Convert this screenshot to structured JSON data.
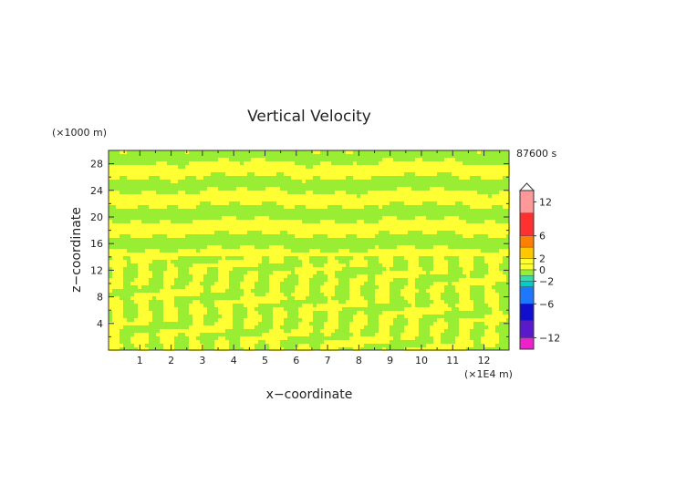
{
  "chart_data": {
    "type": "heatmap",
    "title": "Vertical Velocity",
    "xlabel": "x−coordinate",
    "ylabel": "z−coordinate",
    "x_unit": "(×1E4 m)",
    "y_unit": "(×1000 m)",
    "time_label": "87600 s",
    "xlim": [
      0,
      12.8
    ],
    "ylim": [
      0,
      30
    ],
    "x_ticks": [
      "1",
      "2",
      "3",
      "4",
      "5",
      "6",
      "7",
      "8",
      "9",
      "10",
      "11",
      "12"
    ],
    "y_ticks": [
      "4",
      "8",
      "12",
      "16",
      "20",
      "24",
      "28"
    ],
    "colorbar": {
      "range": [
        -14,
        14
      ],
      "labels": [
        "12",
        "6",
        "2",
        "0",
        "−2",
        "−6",
        "−12"
      ],
      "label_values": [
        12,
        6,
        2,
        0,
        -2,
        -6,
        -12
      ],
      "bands": [
        {
          "lo": 10,
          "hi": 14,
          "color": "#ff9999"
        },
        {
          "lo": 6,
          "hi": 10,
          "color": "#ff3030"
        },
        {
          "lo": 4,
          "hi": 6,
          "color": "#ff8000"
        },
        {
          "lo": 2,
          "hi": 4,
          "color": "#ffc800"
        },
        {
          "lo": 1,
          "hi": 2,
          "color": "#ffff33"
        },
        {
          "lo": 0,
          "hi": 1,
          "color": "#ffff33"
        },
        {
          "lo": -1,
          "hi": 0,
          "color": "#99ee33"
        },
        {
          "lo": -2,
          "hi": -1,
          "color": "#33ddaa"
        },
        {
          "lo": -3,
          "hi": -2,
          "color": "#00cccc"
        },
        {
          "lo": -6,
          "hi": -3,
          "color": "#1e78ff"
        },
        {
          "lo": -9,
          "hi": -6,
          "color": "#1010cc"
        },
        {
          "lo": -12,
          "hi": -9,
          "color": "#5a1acc"
        },
        {
          "lo": -14,
          "hi": -12,
          "color": "#ee22cc"
        }
      ]
    },
    "field_colors": {
      "positive": "#ffff33",
      "negative": "#99ee33"
    }
  }
}
